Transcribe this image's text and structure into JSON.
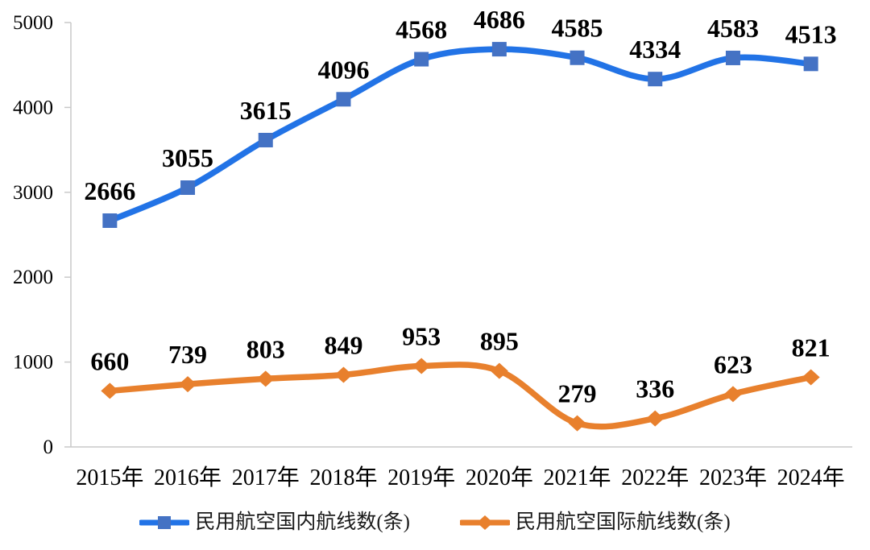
{
  "chart_data": {
    "type": "line",
    "smooth": true,
    "title": "",
    "xlabel": "",
    "ylabel": "",
    "categories": [
      "2015年",
      "2016年",
      "2017年",
      "2018年",
      "2019年",
      "2020年",
      "2021年",
      "2022年",
      "2023年",
      "2024年"
    ],
    "series": [
      {
        "name": "民用航空国内航线数(条)",
        "values": [
          2666,
          3055,
          3615,
          4096,
          4568,
          4686,
          4585,
          4334,
          4583,
          4513
        ],
        "line_color": "#2273E6",
        "marker_color": "#4472C4",
        "marker": "square"
      },
      {
        "name": "民用航空国际航线数(条)",
        "values": [
          660,
          739,
          803,
          849,
          953,
          895,
          279,
          336,
          623,
          821
        ],
        "line_color": "#E8802D",
        "marker_color": "#E8802D",
        "marker": "diamond"
      }
    ],
    "ylim": [
      0,
      5000
    ],
    "yticks": [
      0,
      1000,
      2000,
      3000,
      4000,
      5000
    ],
    "grid": "off",
    "legend_position": "bottom",
    "axis_color": "#C9C9C9",
    "text_color": "#000000"
  }
}
